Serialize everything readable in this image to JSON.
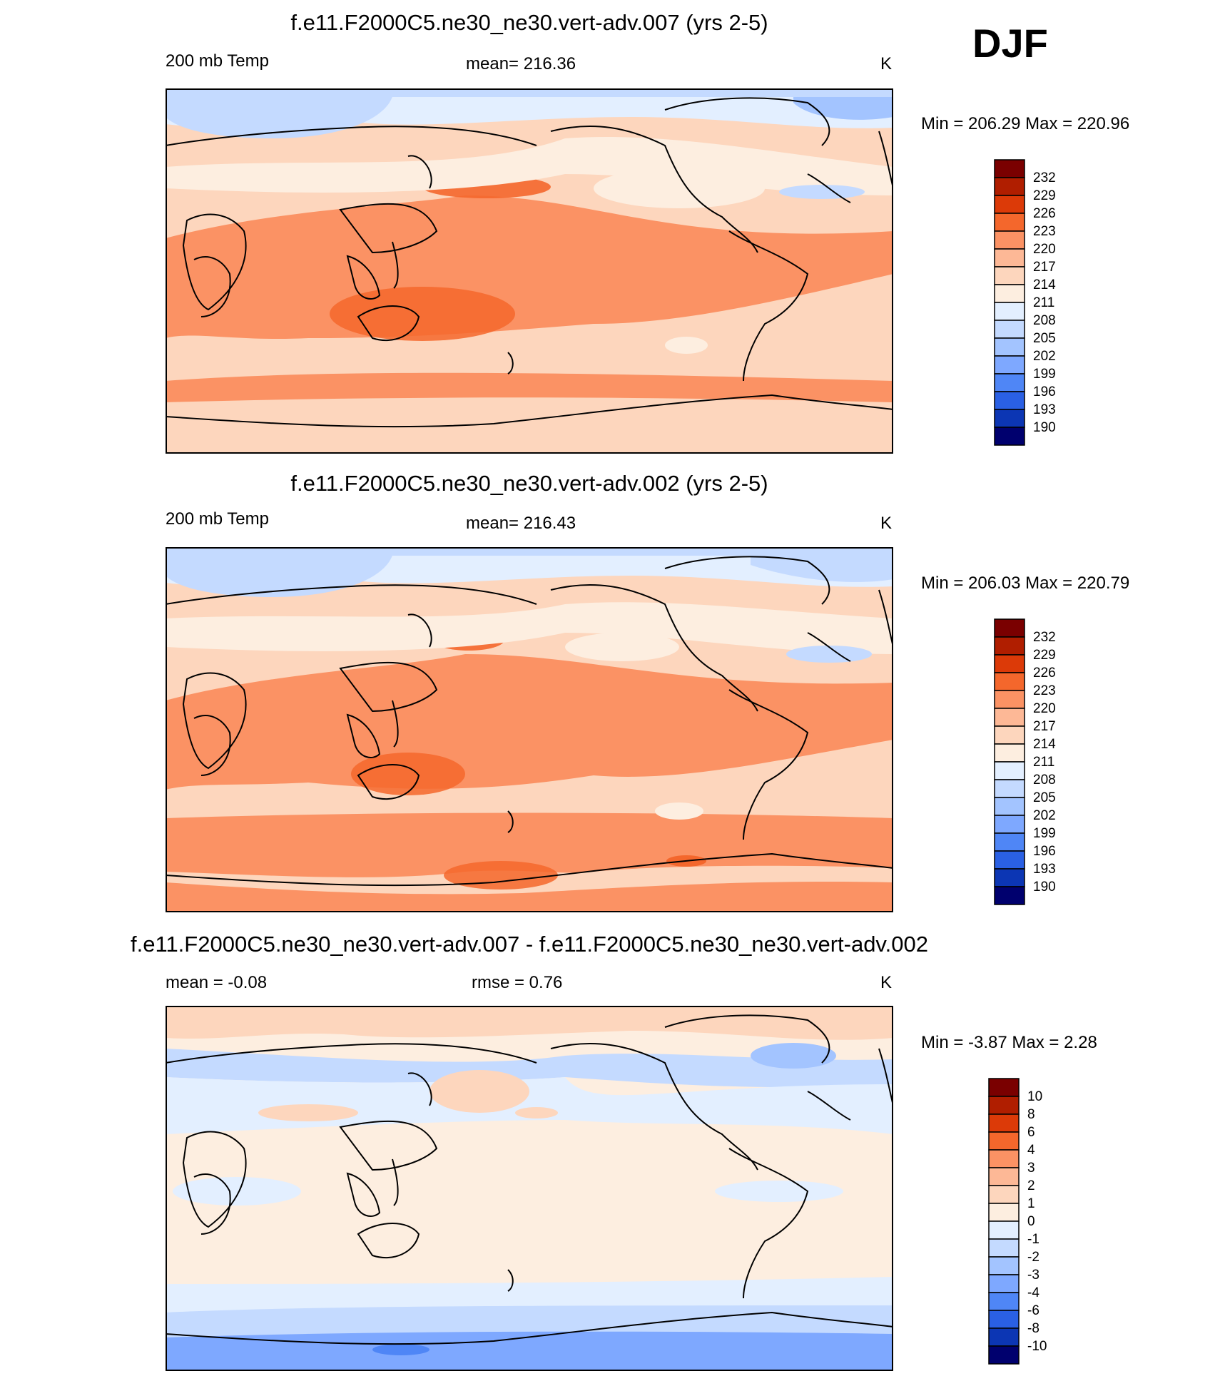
{
  "season": "DJF",
  "panels": [
    {
      "title": "f.e11.F2000C5.ne30_ne30.vert-adv.007 (yrs 2-5)",
      "left": "200 mb Temp",
      "center": "mean= 216.36",
      "right": "K",
      "minmax": "Min = 206.29 Max = 220.96"
    },
    {
      "title": "f.e11.F2000C5.ne30_ne30.vert-adv.002 (yrs 2-5)",
      "left": "200 mb Temp",
      "center": "mean= 216.43",
      "right": "K",
      "minmax": "Min = 206.03 Max = 220.79"
    },
    {
      "title": "f.e11.F2000C5.ne30_ne30.vert-adv.007 - f.e11.F2000C5.ne30_ne30.vert-adv.002",
      "left": "mean =  -0.08",
      "center": "rmse =   0.76",
      "right": "K",
      "minmax": "Min =  -3.87 Max =   2.28"
    }
  ],
  "colorbars": {
    "abs": {
      "labels": [
        "232",
        "229",
        "226",
        "223",
        "220",
        "217",
        "214",
        "211",
        "208",
        "205",
        "202",
        "199",
        "196",
        "193",
        "190"
      ],
      "colors": [
        "#7a0000",
        "#b01e00",
        "#dc3a08",
        "#f4672c",
        "#fb9264",
        "#fdb896",
        "#fdd6bd",
        "#fdeee0",
        "#e3efff",
        "#c4daff",
        "#a3c4ff",
        "#7ea8ff",
        "#4f86f6",
        "#2a60e4",
        "#0c36b4",
        "#00006e"
      ]
    },
    "diff": {
      "labels": [
        "10",
        "8",
        "6",
        "4",
        "3",
        "2",
        "1",
        "0",
        "-1",
        "-2",
        "-3",
        "-4",
        "-6",
        "-8",
        "-10"
      ],
      "colors": [
        "#7a0000",
        "#b01e00",
        "#dc3a08",
        "#f4672c",
        "#fb9264",
        "#fdb896",
        "#fdd6bd",
        "#fdeee0",
        "#e3efff",
        "#c4daff",
        "#a3c4ff",
        "#7ea8ff",
        "#4f86f6",
        "#2a60e4",
        "#0c36b4",
        "#00006e"
      ]
    }
  }
}
